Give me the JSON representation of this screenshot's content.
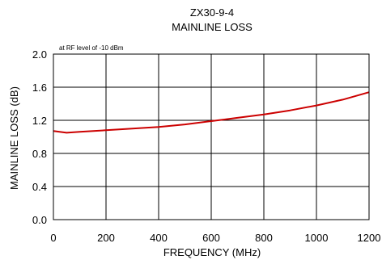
{
  "chart_data": {
    "type": "line",
    "title": "ZX30-9-4",
    "subtitle": "MAINLINE LOSS",
    "annotation": "at RF level of -10 dBm",
    "xlabel": "FREQUENCY (MHz)",
    "ylabel": "MAINLINE LOSS (dB)",
    "xlim": [
      0,
      1200
    ],
    "ylim": [
      0.0,
      2.0
    ],
    "xticks": [
      "0",
      "200",
      "400",
      "600",
      "800",
      "1000",
      "1200"
    ],
    "yticks": [
      "0.0",
      "0.4",
      "0.8",
      "1.2",
      "1.6",
      "2.0"
    ],
    "grid": true,
    "series": [
      {
        "color": "#cc0000",
        "x": [
          0,
          50,
          100,
          200,
          300,
          400,
          500,
          600,
          650,
          700,
          800,
          900,
          1000,
          1100,
          1200
        ],
        "y": [
          1.07,
          1.05,
          1.06,
          1.08,
          1.1,
          1.12,
          1.15,
          1.19,
          1.21,
          1.23,
          1.27,
          1.32,
          1.38,
          1.45,
          1.54
        ]
      }
    ]
  }
}
